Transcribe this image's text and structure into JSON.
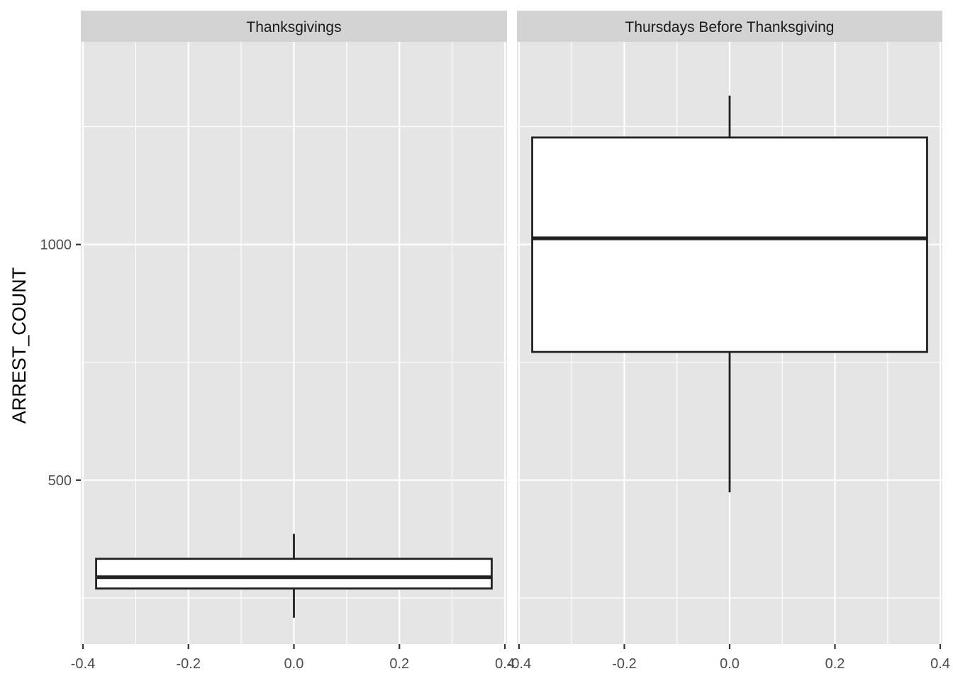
{
  "chart_data": {
    "type": "boxplot",
    "title": "",
    "xlabel": "",
    "ylabel": "ARREST_COUNT",
    "xlim": [
      -0.4,
      0.4
    ],
    "ylim": [
      152,
      1430
    ],
    "x_ticks": [
      -0.4,
      -0.2,
      0.0,
      0.2,
      0.4
    ],
    "x_tick_labels": [
      "-0.4",
      "-0.2",
      "0.0",
      "0.2",
      "0.4"
    ],
    "y_ticks": [
      500,
      1000
    ],
    "y_tick_labels": [
      "500",
      "1000"
    ],
    "y_minor_ticks": [
      250,
      750,
      1250
    ],
    "grid": true,
    "panel_background": "#e5e5e5",
    "strip_background": "#d3d3d3",
    "box_fill": "#ffffff",
    "box_line": "#222222",
    "facets": [
      {
        "label": "Thanksgivings",
        "box": {
          "x": 0.0,
          "width": 0.75,
          "whisker_low": 208,
          "q1": 270,
          "median": 294,
          "q3": 333,
          "whisker_high": 386
        }
      },
      {
        "label": "Thursdays Before Thanksgiving",
        "box": {
          "x": 0.0,
          "width": 0.75,
          "whisker_low": 474,
          "q1": 772,
          "median": 1013,
          "q3": 1227,
          "whisker_high": 1316
        }
      }
    ]
  }
}
